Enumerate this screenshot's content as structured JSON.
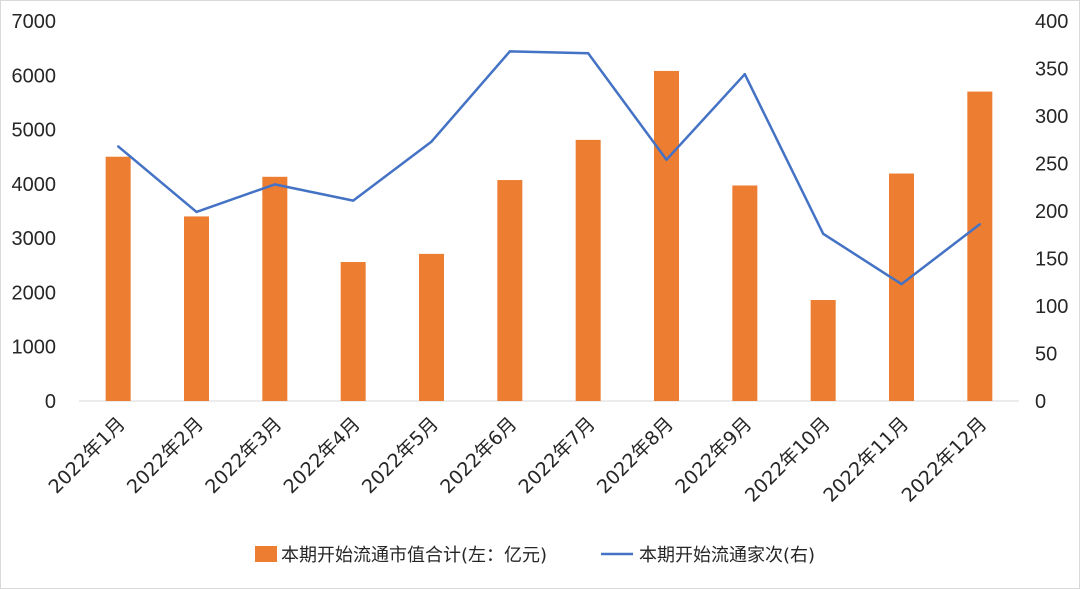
{
  "chart_data": {
    "type": "bar+line",
    "categories": [
      "2022年1月",
      "2022年2月",
      "2022年3月",
      "2022年4月",
      "2022年5月",
      "2022年6月",
      "2022年7月",
      "2022年8月",
      "2022年9月",
      "2022年10月",
      "2022年11月",
      "2022年12月"
    ],
    "series": [
      {
        "name": "本期开始流通市值合计(左：亿元)",
        "type": "bar",
        "axis": "left",
        "color": "#ED7D31",
        "values": [
          4500,
          3400,
          4130,
          2560,
          2710,
          4070,
          4810,
          6080,
          3970,
          1860,
          4190,
          5700
        ]
      },
      {
        "name": "本期开始流通家次(右)",
        "type": "line",
        "axis": "right",
        "color": "#4472C4",
        "values": [
          268,
          199,
          228,
          211,
          273,
          368,
          366,
          254,
          344,
          176,
          123,
          186
        ]
      }
    ],
    "y_left": {
      "min": 0,
      "max": 7000,
      "step": 1000,
      "ticks": [
        "0",
        "1000",
        "2000",
        "3000",
        "4000",
        "5000",
        "6000",
        "7000"
      ]
    },
    "y_right": {
      "min": 0,
      "max": 400,
      "step": 50,
      "ticks": [
        "0",
        "50",
        "100",
        "150",
        "200",
        "250",
        "300",
        "350",
        "400"
      ]
    },
    "grid": false,
    "legend": "bottom"
  }
}
